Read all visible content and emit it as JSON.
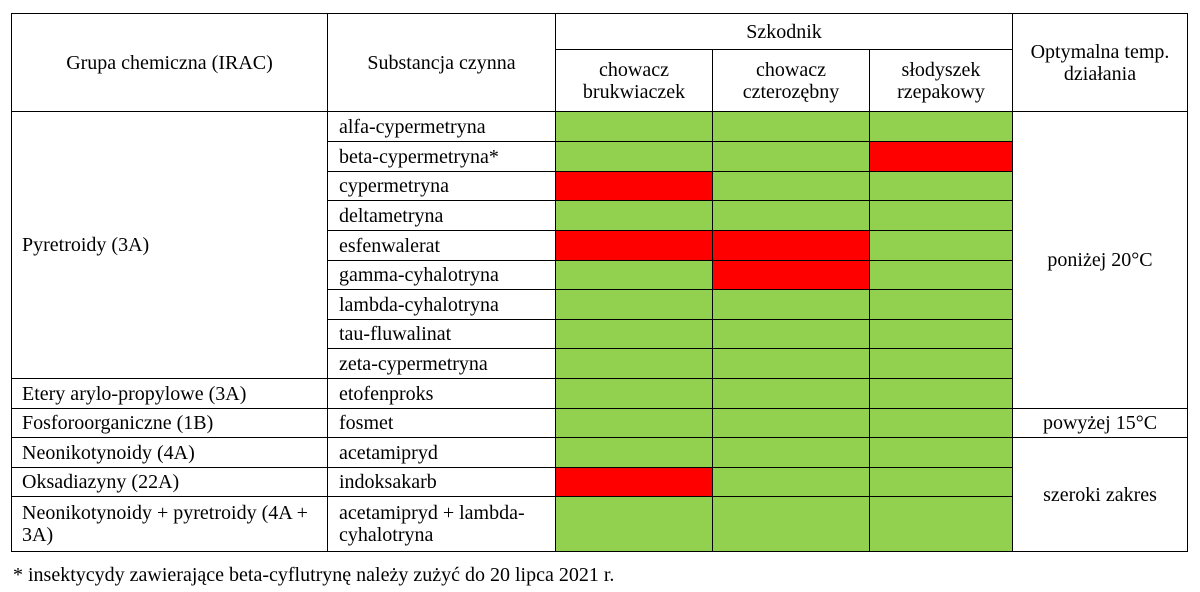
{
  "header": {
    "group": "Grupa chemiczna (IRAC)",
    "substance": "Substancja czynna",
    "pest": "Szkodnik",
    "pests": [
      "chowacz brukwiaczek",
      "chowacz czterozębny",
      "słodyszek rzepakowy"
    ],
    "temp": "Optymalna temp. działania"
  },
  "groups": [
    "Pyretroidy (3A)",
    "Etery arylo-propylowe (3A)",
    "Fosforoorganiczne (1B)",
    "Neonikotynoidy (4A)",
    "Oksadiazyny (22A)",
    "Neonikotynoidy + pyretroidy (4A + 3A)"
  ],
  "rows": [
    {
      "substance": "alfa-cypermetryna",
      "status": [
        "green",
        "green",
        "green"
      ]
    },
    {
      "substance": "beta-cypermetryna*",
      "status": [
        "green",
        "green",
        "red"
      ]
    },
    {
      "substance": "cypermetryna",
      "status": [
        "red",
        "green",
        "green"
      ]
    },
    {
      "substance": "deltametryna",
      "status": [
        "green",
        "green",
        "green"
      ]
    },
    {
      "substance": "esfenwalerat",
      "status": [
        "red",
        "red",
        "green"
      ]
    },
    {
      "substance": "gamma-cyhalotryna",
      "status": [
        "green",
        "red",
        "green"
      ]
    },
    {
      "substance": "lambda-cyhalotryna",
      "status": [
        "green",
        "green",
        "green"
      ]
    },
    {
      "substance": "tau-fluwalinat",
      "status": [
        "green",
        "green",
        "green"
      ]
    },
    {
      "substance": "zeta-cypermetryna",
      "status": [
        "green",
        "green",
        "green"
      ]
    },
    {
      "substance": "etofenproks",
      "status": [
        "green",
        "green",
        "green"
      ]
    },
    {
      "substance": "fosmet",
      "status": [
        "green",
        "green",
        "green"
      ]
    },
    {
      "substance": "acetamipryd",
      "status": [
        "green",
        "green",
        "green"
      ]
    },
    {
      "substance": "indoksakarb",
      "status": [
        "red",
        "green",
        "green"
      ]
    },
    {
      "substance": "acetamipryd + lambda-cyhalotryna",
      "status": [
        "green",
        "green",
        "green"
      ]
    }
  ],
  "temps": [
    "poniżej 20°C",
    "powyżej 15°C",
    "szeroki zakres"
  ],
  "colors": {
    "green": "#92d050",
    "red": "#ff0000"
  },
  "footnote": "* insektycydy zawierające beta-cyflutrynę należy zużyć do 20 lipca 2021 r."
}
